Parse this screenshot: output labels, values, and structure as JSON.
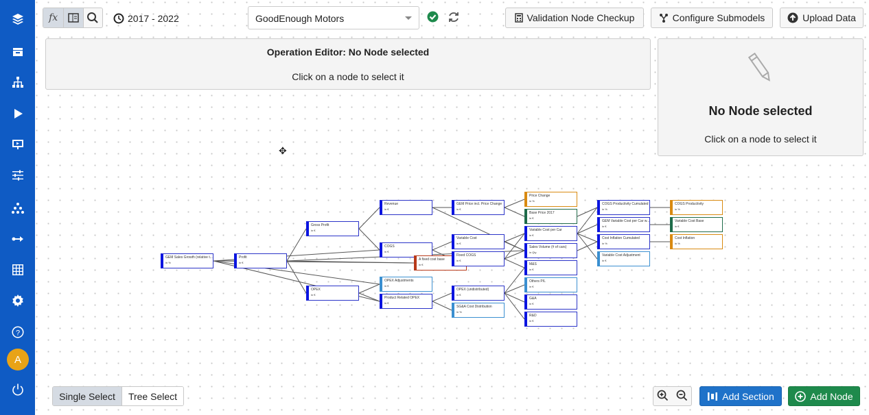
{
  "sidebar": {
    "items": [
      "layers",
      "inbox",
      "hierarchy",
      "play",
      "presentation",
      "sliders",
      "network",
      "arrow-right",
      "grid",
      "gear",
      "help"
    ],
    "avatar": "A"
  },
  "toolbar": {
    "fx": "fx",
    "period": "2017 - 2022",
    "company": "GoodEnough Motors",
    "validation": "Validation Node Checkup",
    "configure": "Configure Submodels",
    "upload": "Upload Data"
  },
  "editor": {
    "title": "Operation Editor: No Node selected",
    "hint": "Click on a node to select it"
  },
  "side_panel": {
    "title": "No Node selected",
    "hint": "Click on a node to select it"
  },
  "bottom": {
    "single": "Single Select",
    "tree": "Tree Select",
    "add_section": "Add Section",
    "add_node": "Add Node"
  },
  "colors": {
    "blue": "#0a14e0",
    "lightblue": "#3a8fd0",
    "orange": "#d98a10",
    "green": "#1f6b4a",
    "red": "#b83a1a",
    "primary": "#1f72c9",
    "success": "#1e8a4c"
  },
  "nodes": [
    {
      "label": "GEM Sales Growth (relative t...",
      "unit": "in %",
      "type": "blue"
    },
    {
      "label": "Profit",
      "unit": "in €",
      "type": "blue"
    },
    {
      "label": "Gross Profit",
      "unit": "in €",
      "type": "blue"
    },
    {
      "label": "OPEX",
      "unit": "in €",
      "type": "blue"
    },
    {
      "label": "Revenue",
      "unit": "in €",
      "type": "blue"
    },
    {
      "label": "COGS",
      "unit": "in €",
      "type": "blue"
    },
    {
      "label": "OPEX Adjustments",
      "unit": "in €",
      "type": "lightblue"
    },
    {
      "label": "Product Related OPEX",
      "unit": "in €",
      "type": "blue"
    },
    {
      "label": "A fixed cost base",
      "unit": "in €",
      "type": "red"
    },
    {
      "label": "GEM Price incl. Price Change",
      "unit": "in €",
      "type": "blue"
    },
    {
      "label": "Variable Cost",
      "unit": "in €",
      "type": "blue"
    },
    {
      "label": "Fixed COGS",
      "unit": "in €",
      "type": "blue"
    },
    {
      "label": "OPEX (undistributed)",
      "unit": "in €",
      "type": "blue"
    },
    {
      "label": "SG&A Cost Distribution",
      "unit": "in %",
      "type": "lightblue"
    },
    {
      "label": "Price Change",
      "unit": "in %",
      "type": "orange"
    },
    {
      "label": "Base Price 2017",
      "unit": "in €",
      "type": "green"
    },
    {
      "label": "Variable Cost per Car",
      "unit": "in €",
      "type": "blue"
    },
    {
      "label": "Sales Volume (# of cars)",
      "unit": "in Qty",
      "type": "blue"
    },
    {
      "label": "M&S",
      "unit": "in €",
      "type": "blue"
    },
    {
      "label": "Others P/L",
      "unit": "in €",
      "type": "lightblue"
    },
    {
      "label": "G&A",
      "unit": "in €",
      "type": "blue"
    },
    {
      "label": "R&D",
      "unit": "in €",
      "type": "blue"
    },
    {
      "label": "COGS Productivity Cumulated",
      "unit": "in %",
      "type": "blue"
    },
    {
      "label": "GEM Variable Cost per Car w...",
      "unit": "in €",
      "type": "blue"
    },
    {
      "label": "Cost Inflation Cumulated",
      "unit": "in %",
      "type": "blue"
    },
    {
      "label": "Variable Cost Adjustment",
      "unit": "in €",
      "type": "lightblue"
    },
    {
      "label": "COGS Productivity",
      "unit": "in %",
      "type": "orange"
    },
    {
      "label": "Variable Cost Base",
      "unit": "in €",
      "type": "green"
    },
    {
      "label": "Cost Inflation",
      "unit": "in %",
      "type": "orange"
    }
  ],
  "edges": [
    [
      0,
      1
    ],
    [
      0,
      8
    ],
    [
      0,
      6
    ],
    [
      0,
      7
    ],
    [
      0,
      5
    ],
    [
      1,
      2
    ],
    [
      1,
      3
    ],
    [
      1,
      8
    ],
    [
      1,
      17
    ],
    [
      2,
      4
    ],
    [
      2,
      5
    ],
    [
      3,
      6
    ],
    [
      3,
      7
    ],
    [
      4,
      9
    ],
    [
      4,
      17
    ],
    [
      5,
      10
    ],
    [
      5,
      11
    ],
    [
      7,
      12
    ],
    [
      7,
      13
    ],
    [
      9,
      14
    ],
    [
      9,
      15
    ],
    [
      10,
      16
    ],
    [
      10,
      17
    ],
    [
      11,
      17
    ],
    [
      11,
      16
    ],
    [
      11,
      18
    ],
    [
      12,
      18
    ],
    [
      12,
      19
    ],
    [
      12,
      20
    ],
    [
      12,
      21
    ],
    [
      16,
      22
    ],
    [
      16,
      23
    ],
    [
      16,
      24
    ],
    [
      16,
      25
    ],
    [
      17,
      24
    ],
    [
      15,
      22
    ],
    [
      22,
      26
    ],
    [
      23,
      27
    ],
    [
      24,
      28
    ]
  ]
}
